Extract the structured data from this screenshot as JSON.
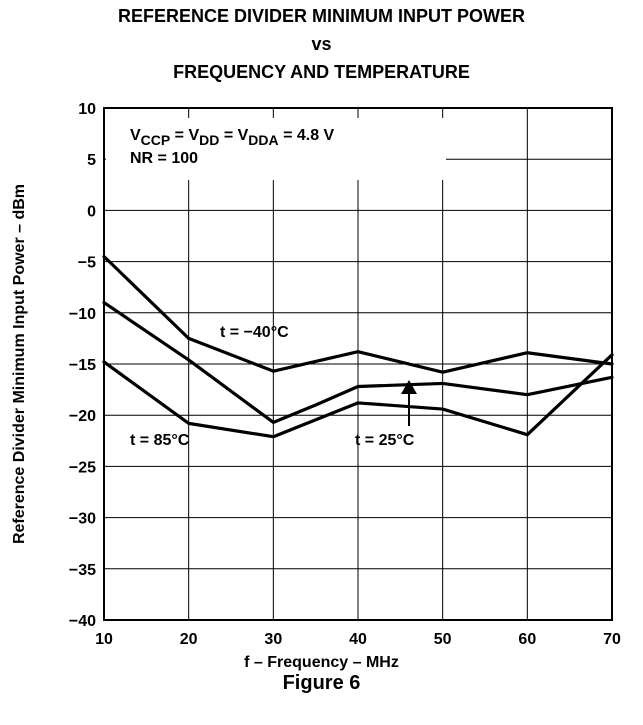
{
  "chart_data": {
    "type": "line",
    "title_lines": [
      "REFERENCE DIVIDER MINIMUM INPUT POWER",
      "vs",
      "FREQUENCY AND TEMPERATURE"
    ],
    "xlabel": "f – Frequency – MHz",
    "ylabel": "Reference Divider Minimum Input Power – dBm",
    "xlim": [
      10,
      70
    ],
    "ylim": [
      -40,
      10
    ],
    "x_ticks": [
      10,
      20,
      30,
      40,
      50,
      60,
      70
    ],
    "y_ticks": [
      10,
      5,
      0,
      -5,
      -10,
      -15,
      -20,
      -25,
      -30,
      -35,
      -40
    ],
    "y_tick_labels": [
      "10",
      "5",
      "0",
      "−5",
      "−10",
      "−15",
      "−20",
      "−25",
      "−30",
      "−35",
      "−40"
    ],
    "grid": true,
    "series": [
      {
        "name": "t = −40°C",
        "x": [
          10,
          20,
          30,
          40,
          50,
          60,
          70
        ],
        "y": [
          -4.5,
          -12.5,
          -15.7,
          -13.8,
          -15.8,
          -13.9,
          -15.0
        ]
      },
      {
        "name": "t = 25°C",
        "x": [
          10,
          20,
          30,
          35,
          40,
          50,
          60,
          70
        ],
        "y": [
          -9.0,
          -14.6,
          -20.7,
          -19.0,
          -17.2,
          -16.9,
          -18.0,
          -16.3
        ]
      },
      {
        "name": "t = 85°C",
        "x": [
          10,
          20,
          30,
          40,
          50,
          60,
          70
        ],
        "y": [
          -14.8,
          -20.8,
          -22.1,
          -18.8,
          -19.4,
          -21.9,
          -14.1
        ]
      }
    ],
    "annotations": {
      "conditions_line1": "V_CCP = V_DD = V_DDA = 4.8  V",
      "conditions_line2": "NR = 100",
      "label_m40": "t = −40°C",
      "label_25": "t = 25°C",
      "label_85": "t = 85°C"
    }
  },
  "text": {
    "cond_v1": "V",
    "cond_sub1": "CCP",
    "cond_eq1": " = V",
    "cond_sub2": "DD",
    "cond_eq2": " = V",
    "cond_sub3": "DDA",
    "cond_val": " = 4.8  V",
    "cond_nr": "NR = 100",
    "figure": "Figure 6"
  }
}
